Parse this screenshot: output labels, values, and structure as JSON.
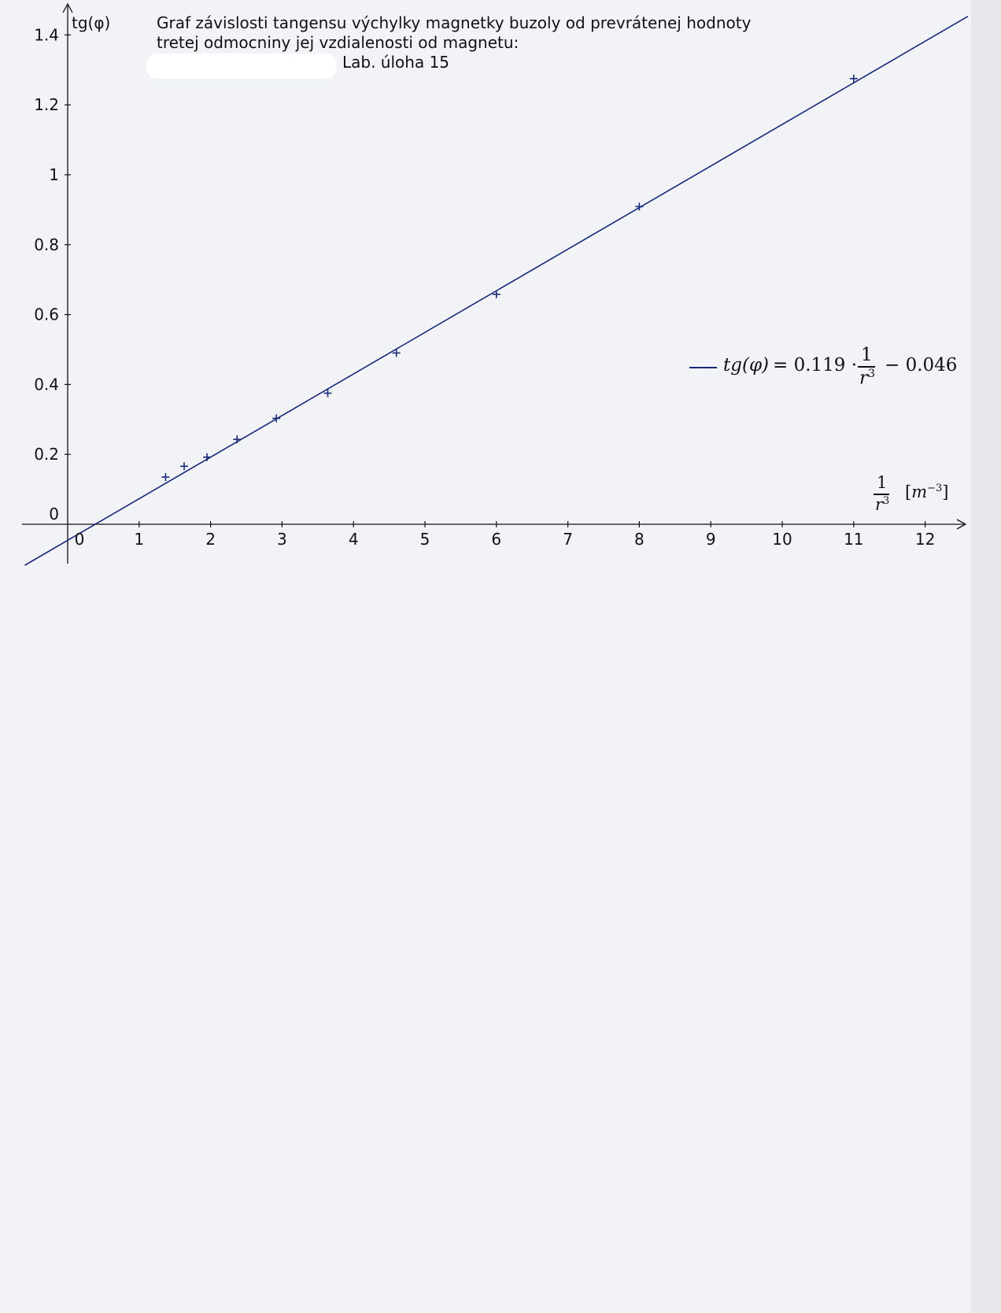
{
  "chart_data": {
    "type": "scatter",
    "title": "Graf závislosti tangensu výchylky magnetky buzoly od prevrátenej hodnoty tretej odmocniny jej vzdialenosti od magnetu:",
    "title_lines": [
      "Graf závislosti tangensu výchylky magnetky buzoly od prevrátenej hodnoty",
      "tretej odmocniny jej vzdialenosti od magnetu:",
      "Lab. úloha 15"
    ],
    "ylabel": "tg(φ)",
    "xlabel": {
      "fraction_numerator": "1",
      "fraction_denominator": "r",
      "fraction_denominator_exponent": "3",
      "unit_open": "[",
      "unit_symbol": "m",
      "unit_exponent": "−3",
      "unit_close": "]"
    },
    "xlim": [
      -0.6,
      12.5
    ],
    "ylim": [
      -0.12,
      1.47
    ],
    "x_ticks": [
      "0",
      "1",
      "2",
      "3",
      "4",
      "5",
      "6",
      "7",
      "8",
      "9",
      "10",
      "11",
      "12"
    ],
    "y_ticks": [
      "0",
      "0.2",
      "0.4",
      "0.6",
      "0.8",
      "1",
      "1.2",
      "1.4"
    ],
    "x_tick_values": [
      0,
      1,
      2,
      3,
      4,
      5,
      6,
      7,
      8,
      9,
      10,
      11,
      12
    ],
    "y_tick_values": [
      0,
      0.2,
      0.4,
      0.6,
      0.8,
      1,
      1.2,
      1.4
    ],
    "grid": false,
    "legend_position": "right",
    "color": "#1a2a7a",
    "series": [
      {
        "marker": "plus",
        "x": [
          1.37,
          1.63,
          1.95,
          2.37,
          2.92,
          3.64,
          4.6,
          6.0,
          8.0,
          11.0
        ],
        "y": [
          0.135,
          0.166,
          0.192,
          0.243,
          0.303,
          0.375,
          0.49,
          0.658,
          0.909,
          1.275
        ]
      },
      {
        "name_parts": {
          "lhs": "tg(φ)",
          "equals_coef": "= 0.119 ·",
          "frac_num": "1",
          "frac_den": "r",
          "frac_den_exp": "3",
          "rest": "− 0.046"
        },
        "type": "line",
        "slope": 0.119,
        "intercept": -0.046,
        "x_range": [
          -0.6,
          12.6
        ]
      }
    ]
  }
}
